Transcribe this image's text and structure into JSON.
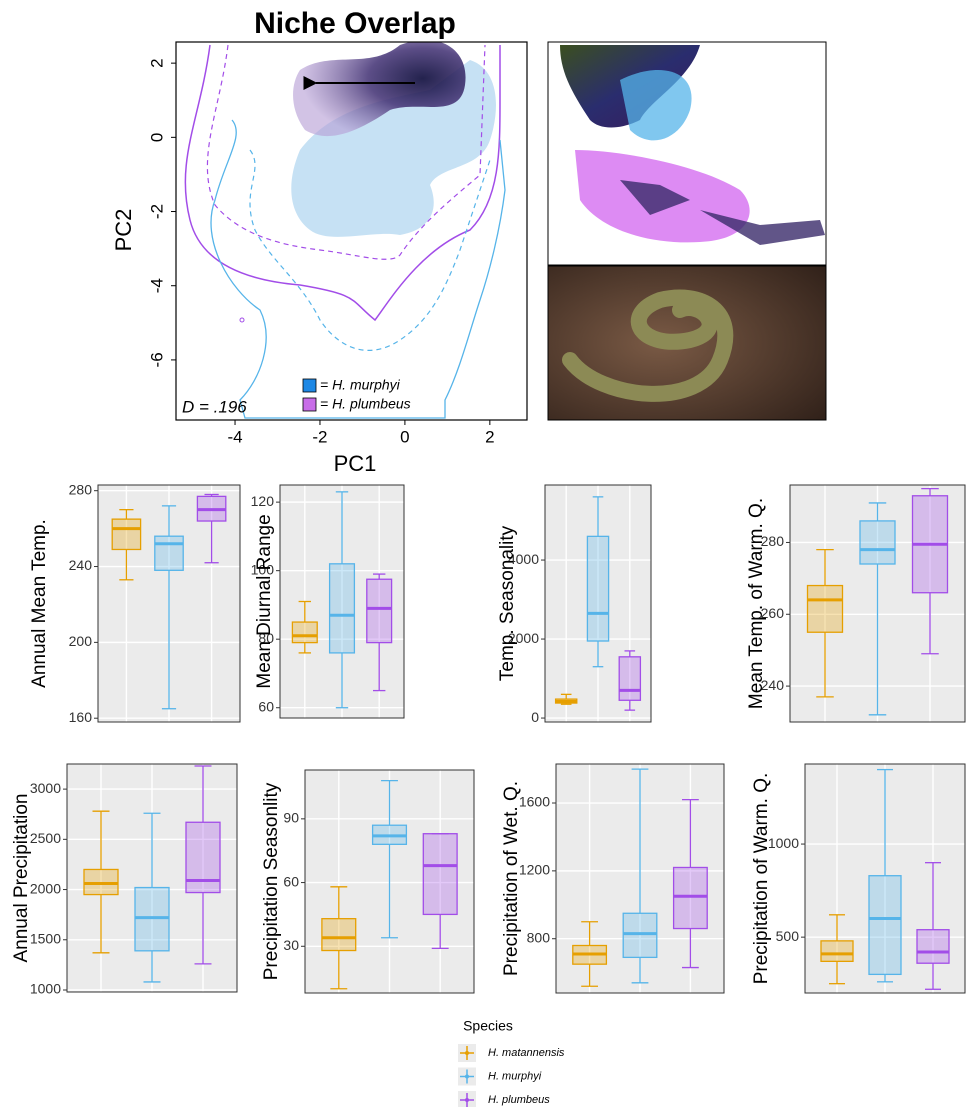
{
  "chart_data": [
    {
      "type": "contour",
      "title": "Niche Overlap",
      "xlabel": "PC1",
      "ylabel": "PC2",
      "xlim": [
        -5.39,
        2.875
      ],
      "ylim": [
        -7.62,
        2.57
      ],
      "xticks": [
        -4,
        -2,
        0,
        2
      ],
      "yticks": [
        -6,
        -4,
        -2,
        0,
        2
      ],
      "annotation": "D = .196",
      "legend_items": [
        {
          "name": "= H. murphyi",
          "color": "#1e88e5"
        },
        {
          "name": "= H. plumbeus",
          "color": "#c86de8"
        }
      ]
    },
    {
      "type": "box",
      "ylabel": "Annual Mean Temp.",
      "ylabel_color": "#2db24a",
      "ylim": [
        158,
        283
      ],
      "yticks": [
        160,
        200,
        240,
        280
      ],
      "boxes": [
        {
          "whislo": 233,
          "q1": 249,
          "median": 260,
          "q3": 265,
          "whishi": 270
        },
        {
          "whislo": 165,
          "q1": 238,
          "median": 252,
          "q3": 256,
          "whishi": 272
        },
        {
          "whislo": 242,
          "q1": 264,
          "median": 270,
          "q3": 277,
          "whishi": 278
        }
      ]
    },
    {
      "type": "box",
      "ylabel": "Mean Diurnal Range",
      "ylabel_color": "#000000",
      "ylim": [
        57,
        125
      ],
      "yticks": [
        60,
        80,
        100,
        120
      ],
      "boxes": [
        {
          "whislo": 76,
          "q1": 79,
          "median": 81,
          "q3": 85,
          "whishi": 91
        },
        {
          "whislo": 60,
          "q1": 76,
          "median": 87,
          "q3": 102,
          "whishi": 123
        },
        {
          "whislo": 65,
          "q1": 79,
          "median": 89,
          "q3": 97.5,
          "whishi": 99
        }
      ]
    },
    {
      "type": "box",
      "ylabel": "Temp. Seasonality",
      "ylabel_color": "#2db24a",
      "ylim": [
        -100,
        5900
      ],
      "yticks": [
        0,
        2000,
        4000
      ],
      "boxes": [
        {
          "whislo": 350,
          "q1": 380,
          "median": 420,
          "q3": 480,
          "whishi": 600
        },
        {
          "whislo": 1300,
          "q1": 1950,
          "median": 2650,
          "q3": 4600,
          "whishi": 5600
        },
        {
          "whislo": 200,
          "q1": 450,
          "median": 700,
          "q3": 1550,
          "whishi": 1700
        }
      ]
    },
    {
      "type": "box",
      "ylabel": "Mean Temp. of Warm. Q.",
      "ylabel_color": "#000000",
      "ylim": [
        230,
        296
      ],
      "yticks": [
        240,
        260,
        280
      ],
      "boxes": [
        {
          "whislo": 237,
          "q1": 255,
          "median": 264,
          "q3": 268,
          "whishi": 278
        },
        {
          "whislo": 232,
          "q1": 274,
          "median": 278,
          "q3": 286,
          "whishi": 291
        },
        {
          "whislo": 249,
          "q1": 266,
          "median": 279.5,
          "q3": 293,
          "whishi": 295
        }
      ]
    },
    {
      "type": "box",
      "ylabel": "Annual Precipitation",
      "ylabel_color": "#2db24a",
      "ylim": [
        980,
        3250
      ],
      "yticks": [
        1000,
        1500,
        2000,
        2500,
        3000
      ],
      "boxes": [
        {
          "whislo": 1370,
          "q1": 1950,
          "median": 2060,
          "q3": 2200,
          "whishi": 2780
        },
        {
          "whislo": 1080,
          "q1": 1390,
          "median": 1720,
          "q3": 2020,
          "whishi": 2760
        },
        {
          "whislo": 1260,
          "q1": 1970,
          "median": 2090,
          "q3": 2670,
          "whishi": 3230
        }
      ]
    },
    {
      "type": "box",
      "ylabel": "Precipitation Seasonlity",
      "ylabel_color": "#2db24a",
      "ylim": [
        8,
        113
      ],
      "yticks": [
        30,
        60,
        90
      ],
      "boxes": [
        {
          "whislo": 10,
          "q1": 28,
          "median": 34,
          "q3": 43,
          "whishi": 58
        },
        {
          "whislo": 34,
          "q1": 78,
          "median": 82,
          "q3": 87,
          "whishi": 108
        },
        {
          "whislo": 29,
          "q1": 45,
          "median": 68,
          "q3": 83,
          "whishi": 83
        }
      ]
    },
    {
      "type": "box",
      "ylabel": "Precipitation of Wet. Q.",
      "ylabel_color": "#000000",
      "ylim": [
        480,
        1830
      ],
      "yticks": [
        800,
        1200,
        1600
      ],
      "boxes": [
        {
          "whislo": 520,
          "q1": 650,
          "median": 710,
          "q3": 760,
          "whishi": 900
        },
        {
          "whislo": 540,
          "q1": 690,
          "median": 830,
          "q3": 950,
          "whishi": 1800
        },
        {
          "whislo": 630,
          "q1": 860,
          "median": 1050,
          "q3": 1220,
          "whishi": 1620
        }
      ]
    },
    {
      "type": "box",
      "ylabel": "Precipitation of Warm. Q.",
      "ylabel_color": "#2db24a",
      "ylim": [
        200,
        1430
      ],
      "yticks": [
        500,
        1000
      ],
      "boxes": [
        {
          "whislo": 250,
          "q1": 370,
          "median": 410,
          "q3": 480,
          "whishi": 620
        },
        {
          "whislo": 260,
          "q1": 300,
          "median": 600,
          "q3": 830,
          "whishi": 1400
        },
        {
          "whislo": 220,
          "q1": 360,
          "median": 420,
          "q3": 540,
          "whishi": 900
        }
      ]
    }
  ],
  "legend": {
    "title": "Species",
    "items": [
      {
        "name": "H. matannensis",
        "color": "#e69f00"
      },
      {
        "name": "H. murphyi",
        "color": "#56b4e9"
      },
      {
        "name": "H. plumbeus",
        "color": "#a24de8"
      }
    ]
  }
}
